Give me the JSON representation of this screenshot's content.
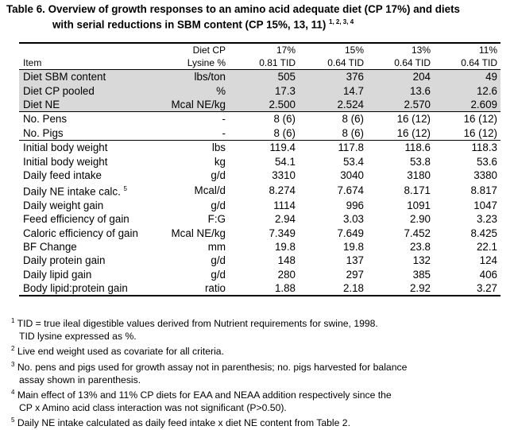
{
  "title": {
    "line1": "Table 6.  Overview of growth responses to an amino acid adequate diet (CP 17%) and diets",
    "line2": "with serial reductions in SBM content (CP 15%, 13, 11)",
    "superscripts": "1, 2, 3, 4"
  },
  "header": {
    "row1": {
      "label": "",
      "unit": "Diet CP",
      "c1": "17%",
      "c2": "15%",
      "c3": "13%",
      "c4": "11%"
    },
    "row2": {
      "label": "Item",
      "unit": "Lysine %",
      "c1": "0.81 TID",
      "c2": "0.64 TID",
      "c3": "0.64 TID",
      "c4": "0.64 TID"
    }
  },
  "diet_rows": [
    {
      "label": "Diet SBM content",
      "unit": "lbs/ton",
      "c1": "505",
      "c2": "376",
      "c3": "204",
      "c4": "49"
    },
    {
      "label": "Diet CP pooled",
      "unit": "%",
      "c1": "17.3",
      "c2": "14.7",
      "c3": "13.6",
      "c4": "12.6"
    },
    {
      "label": "Diet NE",
      "unit": "Mcal NE/kg",
      "c1": "2.500",
      "c2": "2.524",
      "c3": "2.570",
      "c4": "2.609"
    }
  ],
  "count_rows": [
    {
      "label": "No. Pens",
      "unit": "-",
      "c1": "8 (6)",
      "c2": "8 (6)",
      "c3": "16 (12)",
      "c4": "16 (12)"
    },
    {
      "label": "No. Pigs",
      "unit": "-",
      "c1": "8 (6)",
      "c2": "8 (6)",
      "c3": "16 (12)",
      "c4": "16 (12)"
    }
  ],
  "response_rows": [
    {
      "label": "Initial body weight",
      "unit": "lbs",
      "c1": "119.4",
      "c2": "117.8",
      "c3": "118.6",
      "c4": "118.3"
    },
    {
      "label": "Initial body weight",
      "unit": "kg",
      "c1": "54.1",
      "c2": "53.4",
      "c3": "53.8",
      "c4": "53.6"
    },
    {
      "label": "Daily feed intake",
      "unit": "g/d",
      "c1": "3310",
      "c2": "3040",
      "c3": "3180",
      "c4": "3380"
    },
    {
      "label": "Daily NE intake calc.",
      "sup": "5",
      "unit": "Mcal/d",
      "c1": "8.274",
      "c2": "7.674",
      "c3": "8.171",
      "c4": "8.817"
    },
    {
      "label": "Daily weight gain",
      "unit": "g/d",
      "c1": "1114",
      "c2": "996",
      "c3": "1091",
      "c4": "1047"
    },
    {
      "label": "Feed efficiency of gain",
      "unit": "F:G",
      "c1": "2.94",
      "c2": "3.03",
      "c3": "2.90",
      "c4": "3.23"
    },
    {
      "label": "Caloric efficiency of gain",
      "unit": "Mcal NE/kg",
      "c1": "7.349",
      "c2": "7.649",
      "c3": "7.452",
      "c4": "8.425"
    },
    {
      "label": "BF Change",
      "unit": "mm",
      "c1": "19.8",
      "c2": "19.8",
      "c3": "23.8",
      "c4": "22.1"
    },
    {
      "label": "Daily protein gain",
      "unit": "g/d",
      "c1": "148",
      "c2": "137",
      "c3": "132",
      "c4": "124"
    },
    {
      "label": "Daily lipid gain",
      "unit": "g/d",
      "c1": "280",
      "c2": "297",
      "c3": "385",
      "c4": "406"
    },
    {
      "label": "Body lipid:protein gain",
      "unit": "ratio",
      "c1": "1.88",
      "c2": "2.18",
      "c3": "2.92",
      "c4": "3.27"
    }
  ],
  "footnotes": [
    {
      "mark": "1",
      "line1": " TID = true ileal digestible values derived from Nutrient requirements for swine, 1998.",
      "line2": "TID lysine expressed as %."
    },
    {
      "mark": "2",
      "line1": " Live end weight used as covariate for all criteria.",
      "line2": ""
    },
    {
      "mark": "3",
      "line1": " No. pens and pigs used for growth assay not in parenthesis; no. pigs harvested for balance",
      "line2": "assay shown in parenthesis."
    },
    {
      "mark": "4",
      "line1": " Main effect of 13% and 11% CP diets for EAA and NEAA addition respectively since the",
      "line2": "CP x Amino acid class interaction was not significant (P>0.50)."
    },
    {
      "mark": "5",
      "line1": "  Daily NE intake calculated as daily feed intake x diet NE content from Table 2.",
      "line2": ""
    }
  ]
}
